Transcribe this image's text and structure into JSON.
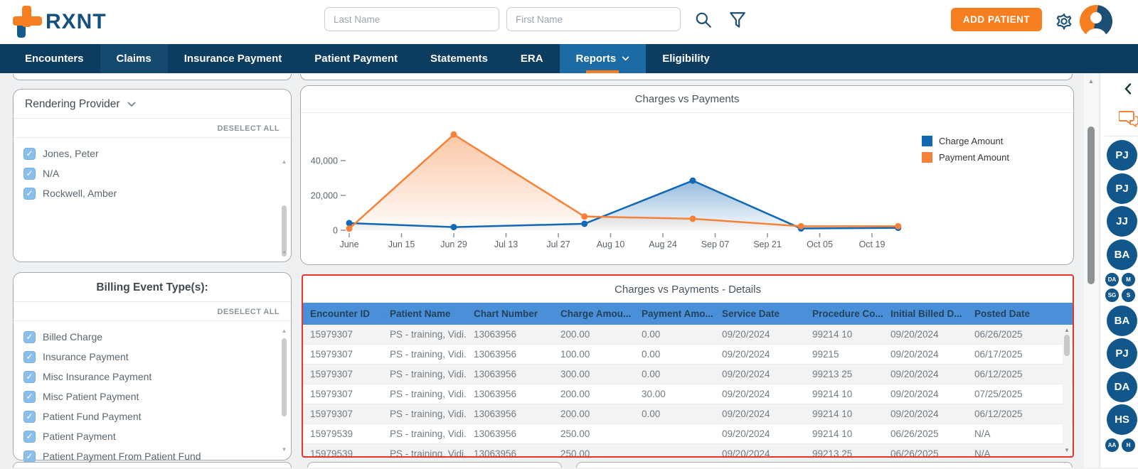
{
  "colors": {
    "accent_orange": "#f57f20",
    "nav_navy": "#0d3c61",
    "nav_active_blue": "#1c6ba4",
    "table_header_blue": "#4a90d8",
    "highlight_red_border": "#e8332a",
    "chart_blue": "#1268b3",
    "chart_orange": "#f58238",
    "avatar_blue": "#11578c",
    "checkbox_blue": "#8abfec"
  },
  "icons": {
    "search": "magnifier",
    "filter": "funnel",
    "settings": "gear",
    "profile": "person-silhouette",
    "chat": "speech-bubbles",
    "collapse": "chevron-left",
    "dropdown": "chevron-down",
    "sort_asc": "triangle-up",
    "checkmark": "✓",
    "scroll_up": "▲",
    "scroll_down": "▼",
    "sort_asc_glyph": "▲"
  },
  "header": {
    "logo_text": "RXNT",
    "last_name_placeholder": "Last Name",
    "first_name_placeholder": "First Name",
    "add_patient_label": "ADD PATIENT"
  },
  "nav": {
    "items": [
      {
        "label": "Encounters",
        "active": false,
        "highlight": false
      },
      {
        "label": "Claims",
        "active": false,
        "highlight": true
      },
      {
        "label": "Insurance Payment",
        "active": false,
        "highlight": false
      },
      {
        "label": "Patient Payment",
        "active": false,
        "highlight": false
      },
      {
        "label": "Statements",
        "active": false,
        "highlight": false
      },
      {
        "label": "ERA",
        "active": false,
        "highlight": false
      },
      {
        "label": "Reports",
        "active": true,
        "highlight": false
      },
      {
        "label": "Eligibility",
        "active": false,
        "highlight": false
      }
    ]
  },
  "filters": {
    "rendering_provider": {
      "title": "Rendering Provider",
      "deselect_all": "DESELECT ALL",
      "options": [
        {
          "label": "Jones, Peter",
          "checked": true
        },
        {
          "label": "N/A",
          "checked": true
        },
        {
          "label": "Rockwell, Amber",
          "checked": true
        }
      ]
    },
    "billing_event": {
      "title": "Billing Event Type(s):",
      "deselect_all": "DESELECT ALL",
      "options": [
        {
          "label": "Billed Charge",
          "checked": true
        },
        {
          "label": "Insurance Payment",
          "checked": true
        },
        {
          "label": "Misc Insurance Payment",
          "checked": true
        },
        {
          "label": "Misc Patient Payment",
          "checked": true
        },
        {
          "label": "Patient Fund Payment",
          "checked": true
        },
        {
          "label": "Patient Payment",
          "checked": true
        },
        {
          "label": "Patient Payment From Patient Fund",
          "checked": true
        }
      ]
    }
  },
  "chart_data": {
    "type": "area-line",
    "title": "Charges vs Payments",
    "x_tick_labels": [
      "June",
      "Jun 15",
      "Jun 29",
      "Jul 13",
      "Jul 27",
      "Aug 10",
      "Aug 24",
      "Sep 07",
      "Sep 21",
      "Oct 05",
      "Oct 19"
    ],
    "tick_interval_days": 14,
    "y_ticks": [
      {
        "label": "0",
        "value": 0
      },
      {
        "label": "20,000",
        "value": 20000
      },
      {
        "label": "40,000",
        "value": 40000
      }
    ],
    "ylim": [
      0,
      60000
    ],
    "legend_position": "top-right",
    "series": [
      {
        "name": "Charge Amount",
        "color": "#1268b3",
        "x_days": [
          0,
          28,
          63,
          92,
          121,
          147
        ],
        "values": [
          4100,
          1800,
          3700,
          28500,
          1000,
          1400
        ]
      },
      {
        "name": "Payment Amount",
        "color": "#f58238",
        "x_days": [
          0,
          28,
          63,
          92,
          121,
          147
        ],
        "values": [
          900,
          55000,
          7900,
          6600,
          2300,
          2300
        ]
      }
    ]
  },
  "details": {
    "title": "Charges vs Payments - Details",
    "sort_column": "Encounter ID",
    "sort_direction": "asc",
    "columns": [
      "Encounter ID",
      "Patient Name",
      "Chart Number",
      "Charge Amou...",
      "Payment Amo...",
      "Service Date",
      "Procedure Co...",
      "Initial Billed D...",
      "Posted Date"
    ],
    "rows": [
      [
        "15979307",
        "PS - training, Vidi...",
        "13063956",
        "200.00",
        "0.00",
        "09/20/2024",
        "99214 10",
        "09/20/2024",
        "06/26/2025"
      ],
      [
        "15979307",
        "PS - training, Vidi...",
        "13063956",
        "100.00",
        "0.00",
        "09/20/2024",
        "99215",
        "09/20/2024",
        "06/17/2025"
      ],
      [
        "15979307",
        "PS - training, Vidi...",
        "13063956",
        "300.00",
        "0.00",
        "09/20/2024",
        "99213 25",
        "09/20/2024",
        "06/12/2025"
      ],
      [
        "15979307",
        "PS - training, Vidi...",
        "13063956",
        "200.00",
        "30.00",
        "09/20/2024",
        "99214 10",
        "09/20/2024",
        "07/25/2025"
      ],
      [
        "15979307",
        "PS - training, Vidi...",
        "13063956",
        "200.00",
        "0.00",
        "09/20/2024",
        "99214 10",
        "09/20/2024",
        "06/12/2025"
      ],
      [
        "15979539",
        "PS - training, Vidi...",
        "13063956",
        "250.00",
        "",
        "09/20/2024",
        "99214 10",
        "06/26/2025",
        "N/A"
      ],
      [
        "15979539",
        "PS - training, Vidi...",
        "13063956",
        "250.00",
        "",
        "09/20/2024",
        "99213 25",
        "06/26/2025",
        "N/A"
      ]
    ]
  },
  "right_rail": {
    "avatars": [
      {
        "type": "big",
        "label": "PJ"
      },
      {
        "type": "big",
        "label": "PJ"
      },
      {
        "type": "big",
        "label": "JJ"
      },
      {
        "type": "big",
        "label": "BA"
      },
      {
        "type": "cluster",
        "labels": [
          "DA",
          "M",
          "SG",
          "S"
        ]
      },
      {
        "type": "big",
        "label": "BA"
      },
      {
        "type": "big",
        "label": "PJ"
      },
      {
        "type": "big",
        "label": "DA"
      },
      {
        "type": "big",
        "label": "HS"
      },
      {
        "type": "cluster",
        "labels": [
          "AA",
          "H"
        ]
      }
    ]
  }
}
